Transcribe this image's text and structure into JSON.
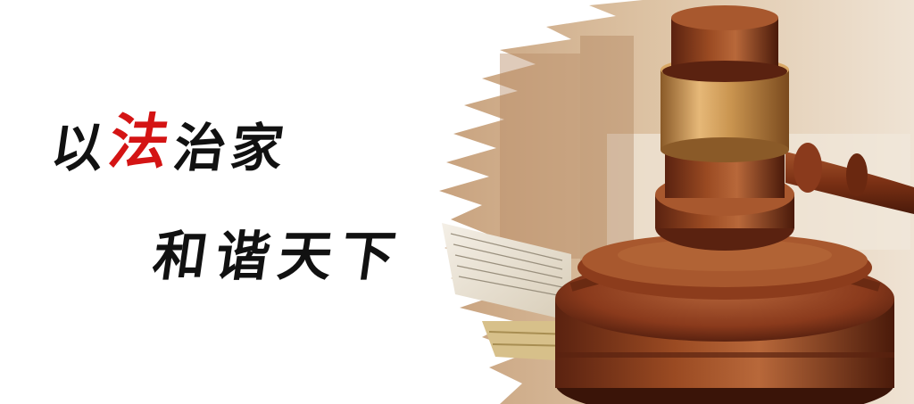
{
  "banner": {
    "slogan_line1": {
      "chars": [
        "以",
        "法",
        "治",
        "家"
      ]
    },
    "slogan_line2": {
      "chars": [
        "和",
        "谐",
        "天",
        "下"
      ]
    }
  },
  "colors": {
    "background": "#ffffff",
    "text": "#111111",
    "accent": "#d41414",
    "wood_dark": "#5a2210",
    "wood_mid": "#8a3a1c",
    "wood_light": "#b86a3a",
    "brass": "#c9944f"
  },
  "icons": {
    "gavel": "gavel-icon",
    "book": "book-icon"
  }
}
